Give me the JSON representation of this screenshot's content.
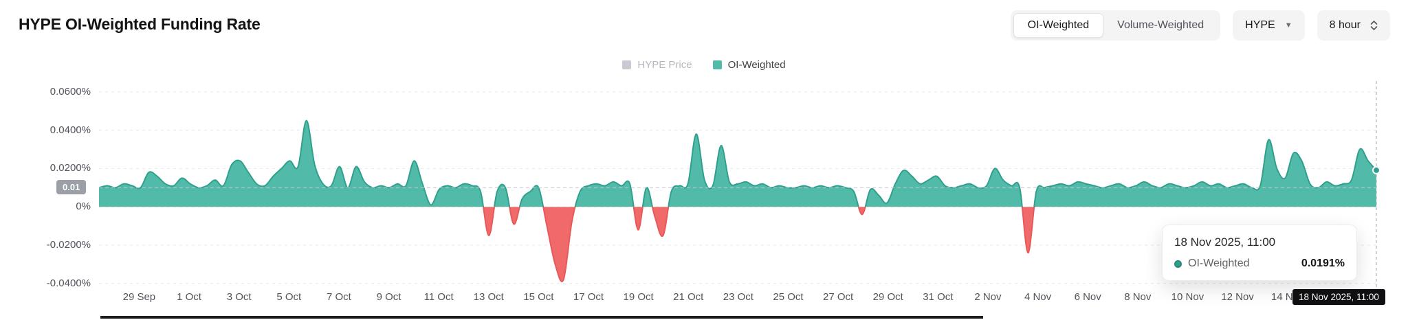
{
  "header": {
    "title": "HYPE OI-Weighted Funding Rate"
  },
  "controls": {
    "mode_tabs": [
      {
        "label": "OI-Weighted",
        "active": true
      },
      {
        "label": "Volume-Weighted",
        "active": false
      }
    ],
    "asset_select": {
      "value": "HYPE"
    },
    "interval_select": {
      "value": "8 hour"
    }
  },
  "legend": [
    {
      "label": "HYPE Price",
      "color": "#c8ccd2",
      "dimmed": true
    },
    {
      "label": "OI-Weighted",
      "color": "#52baa8",
      "dimmed": false
    }
  ],
  "tooltip": {
    "datetime": "18 Nov 2025, 11:00",
    "series": "OI-Weighted",
    "value": "0.0191%",
    "marker_color": "#2fa08d"
  },
  "axis_badge": {
    "label": "18 Nov 2025, 11:00"
  },
  "level_badge": {
    "label": "0.01",
    "value": 0.01
  },
  "chart_data": {
    "type": "area",
    "title": "HYPE OI-Weighted Funding Rate",
    "series_name": "OI-Weighted",
    "unit": "%",
    "grid": true,
    "legend_position": "top-center",
    "ylim": [
      -0.048,
      0.066
    ],
    "y_ticks": [
      {
        "label": "0.0600%",
        "value": 0.06
      },
      {
        "label": "0.0400%",
        "value": 0.04
      },
      {
        "label": "0.0200%",
        "value": 0.02
      },
      {
        "label": "0%",
        "value": 0
      },
      {
        "label": "-0.0200%",
        "value": -0.02
      },
      {
        "label": "-0.0400%",
        "value": -0.04
      }
    ],
    "x_ticks": [
      "29 Sep",
      "1 Oct",
      "3 Oct",
      "5 Oct",
      "7 Oct",
      "9 Oct",
      "11 Oct",
      "13 Oct",
      "15 Oct",
      "17 Oct",
      "19 Oct",
      "21 Oct",
      "23 Oct",
      "25 Oct",
      "27 Oct",
      "29 Oct",
      "31 Oct",
      "2 Nov",
      "4 Nov",
      "6 Nov",
      "8 Nov",
      "10 Nov",
      "12 Nov",
      "14 Nov"
    ],
    "x_range": [
      "28 Sep 2025",
      "18 Nov 2025 11:00"
    ],
    "baseline_marker": 0.01,
    "positive_color": "#52baa8",
    "positive_stroke": "#2fa08d",
    "negative_color": "#f16a6a",
    "negative_stroke": "#e85858",
    "values": [
      0.01,
      0.011,
      0.01,
      0.012,
      0.011,
      0.01,
      0.018,
      0.016,
      0.012,
      0.011,
      0.015,
      0.012,
      0.01,
      0.011,
      0.014,
      0.011,
      0.022,
      0.024,
      0.018,
      0.012,
      0.011,
      0.016,
      0.02,
      0.024,
      0.021,
      0.045,
      0.022,
      0.012,
      0.011,
      0.021,
      0.01,
      0.021,
      0.013,
      0.01,
      0.011,
      0.01,
      0.012,
      0.011,
      0.024,
      0.012,
      0.001,
      0.009,
      0.011,
      0.01,
      0.012,
      0.011,
      0.008,
      -0.015,
      0.008,
      0.01,
      -0.009,
      0.004,
      0.008,
      0.01,
      -0.01,
      -0.03,
      -0.038,
      -0.008,
      0.008,
      0.011,
      0.012,
      0.011,
      0.013,
      0.011,
      0.012,
      -0.012,
      0.01,
      -0.005,
      -0.015,
      0.008,
      0.011,
      0.012,
      0.038,
      0.014,
      0.011,
      0.032,
      0.013,
      0.012,
      0.013,
      0.011,
      0.012,
      0.01,
      0.011,
      0.01,
      0.01,
      0.011,
      0.01,
      0.011,
      0.01,
      0.011,
      0.01,
      0.008,
      -0.004,
      0.009,
      0.006,
      0.002,
      0.012,
      0.019,
      0.016,
      0.012,
      0.014,
      0.016,
      0.011,
      0.01,
      0.011,
      0.012,
      0.01,
      0.011,
      0.02,
      0.014,
      0.011,
      0.01,
      -0.024,
      0.008,
      0.01,
      0.011,
      0.012,
      0.011,
      0.013,
      0.012,
      0.011,
      0.01,
      0.011,
      0.012,
      0.01,
      0.011,
      0.013,
      0.011,
      0.01,
      0.012,
      0.011,
      0.01,
      0.011,
      0.013,
      0.011,
      0.012,
      0.01,
      0.011,
      0.012,
      0.01,
      0.011,
      0.035,
      0.02,
      0.015,
      0.028,
      0.024,
      0.012,
      0.01,
      0.013,
      0.011,
      0.012,
      0.014,
      0.03,
      0.024,
      0.0191
    ],
    "hover": {
      "index": 154,
      "value": 0.0191,
      "datetime": "18 Nov 2025, 11:00"
    }
  }
}
